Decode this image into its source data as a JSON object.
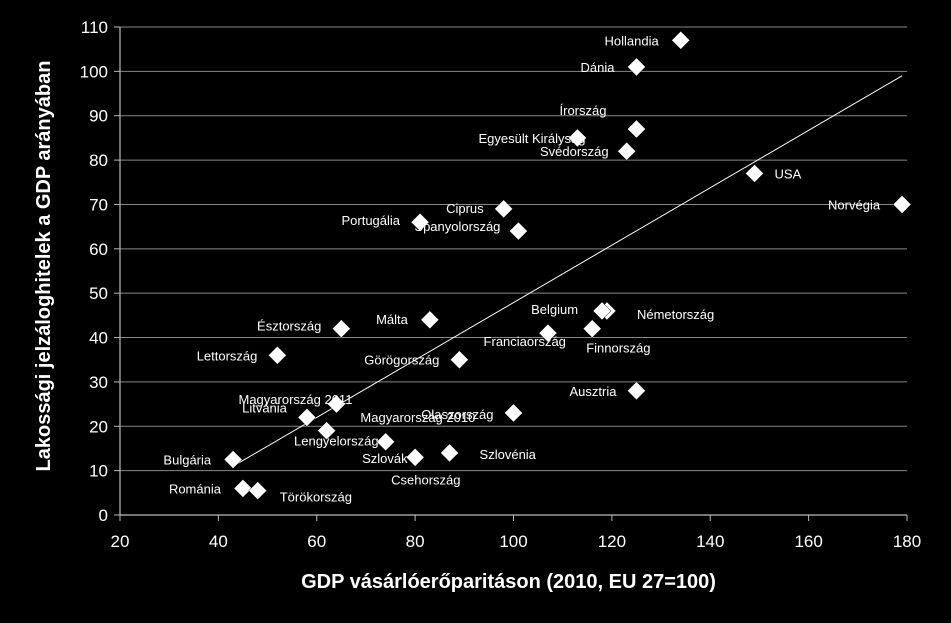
{
  "chart_data": {
    "type": "scatter",
    "title": "",
    "xlabel": "GDP vásárlóerőparitáson (2010, EU 27=100)",
    "ylabel": "Lakossági jelzáloghitelek a GDP arányában",
    "xlim": [
      20,
      180
    ],
    "ylim": [
      0,
      110
    ],
    "xticks": [
      20,
      40,
      60,
      80,
      100,
      120,
      140,
      160,
      180
    ],
    "yticks": [
      0,
      10,
      20,
      30,
      40,
      50,
      60,
      70,
      80,
      90,
      100,
      110
    ],
    "grid": "horizontal",
    "marker_color": "#ffffff",
    "trendline": {
      "x": [
        43,
        179
      ],
      "y": [
        11,
        99
      ]
    },
    "points": [
      {
        "label": "Hollandia",
        "x": 134,
        "y": 107
      },
      {
        "label": "Dánia",
        "x": 125,
        "y": 101
      },
      {
        "label": "Írország",
        "x": 125,
        "y": 87
      },
      {
        "label": "Egyesült Királyság",
        "x": 113,
        "y": 85
      },
      {
        "label": "Svédország",
        "x": 123,
        "y": 82
      },
      {
        "label": "USA",
        "x": 149,
        "y": 77
      },
      {
        "label": "Norvégia",
        "x": 179,
        "y": 70
      },
      {
        "label": "Ciprus",
        "x": 98,
        "y": 69
      },
      {
        "label": "Portugália",
        "x": 81,
        "y": 66
      },
      {
        "label": "Spanyolország",
        "x": 101,
        "y": 64
      },
      {
        "label": "Németország",
        "x": 119,
        "y": 46
      },
      {
        "label": "Belgium",
        "x": 118,
        "y": 46
      },
      {
        "label": "Málta",
        "x": 83,
        "y": 44
      },
      {
        "label": "Észtország",
        "x": 65,
        "y": 42
      },
      {
        "label": "Finnország",
        "x": 116,
        "y": 42
      },
      {
        "label": "Franciaország",
        "x": 107,
        "y": 41
      },
      {
        "label": "Lettország",
        "x": 52,
        "y": 36
      },
      {
        "label": "Görögország",
        "x": 89,
        "y": 35
      },
      {
        "label": "Ausztria",
        "x": 125,
        "y": 28
      },
      {
        "label": "Magyarország 2011",
        "x": 64,
        "y": 25
      },
      {
        "label": "Magyarország 2010",
        "x": 64,
        "y": 25
      },
      {
        "label": "Litvánia",
        "x": 58,
        "y": 22
      },
      {
        "label": "Olaszország",
        "x": 100,
        "y": 23
      },
      {
        "label": "Lengyelország",
        "x": 62,
        "y": 19
      },
      {
        "label": "Szlovákia",
        "x": 74,
        "y": 16.5
      },
      {
        "label": "Csehország",
        "x": 80,
        "y": 13
      },
      {
        "label": "Szlovénia",
        "x": 87,
        "y": 14
      },
      {
        "label": "Bulgária",
        "x": 43,
        "y": 12.5
      },
      {
        "label": "Románia",
        "x": 45,
        "y": 6
      },
      {
        "label": "Törökország",
        "x": 48,
        "y": 5.5
      }
    ],
    "label_texts": {
      "Szlovákia": "Szlovák"
    }
  }
}
